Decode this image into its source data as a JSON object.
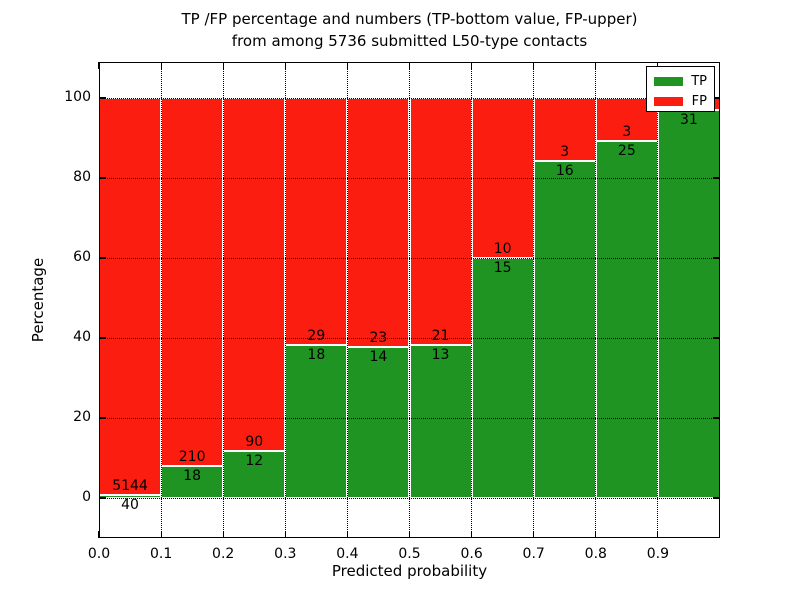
{
  "title": {
    "line1": "TP /FP percentage and numbers (TP-bottom value, FP-upper)",
    "line2": "from among 5736 submitted L50-type contacts"
  },
  "colors": {
    "tp_green": "#1f9422",
    "fp_red": "#fb1d10",
    "grid": "#000000",
    "background": "#ffffff"
  },
  "chart_data": {
    "type": "bar",
    "stacked": true,
    "title": "TP /FP percentage and numbers (TP-bottom value, FP-upper) from among 5736 submitted L50-type contacts",
    "total_submitted_contacts": 5736,
    "xlabel": "Predicted probability",
    "ylabel": "Percentage",
    "xlim": [
      0.0,
      1.0
    ],
    "ylim": [
      -10,
      109
    ],
    "x_tick_labels": [
      "0.0",
      "0.1",
      "0.2",
      "0.3",
      "0.4",
      "0.5",
      "0.6",
      "0.7",
      "0.8",
      "0.9"
    ],
    "y_ticks": [
      0,
      20,
      40,
      60,
      80,
      100
    ],
    "grid": "dotted black, both axes, drawn over bars",
    "legend_position": "upper right",
    "categories": [
      "0.0-0.1",
      "0.1-0.2",
      "0.2-0.3",
      "0.3-0.4",
      "0.4-0.5",
      "0.5-0.6",
      "0.6-0.7",
      "0.7-0.8",
      "0.8-0.9",
      "0.9-1.0"
    ],
    "series": [
      {
        "name": "TP",
        "color": "#1f9422",
        "counts": [
          40,
          18,
          12,
          18,
          14,
          13,
          15,
          16,
          25,
          31
        ]
      },
      {
        "name": "FP",
        "color": "#fb1d10",
        "counts": [
          5144,
          210,
          90,
          29,
          23,
          21,
          10,
          3,
          3,
          null
        ]
      }
    ],
    "tp_percent_heights": [
      0.8,
      7.9,
      11.8,
      38.3,
      37.8,
      38.2,
      60.0,
      84.2,
      89.3,
      96.9
    ],
    "note": "last-bin FP count label occluded by legend; bars stack to 100%"
  }
}
